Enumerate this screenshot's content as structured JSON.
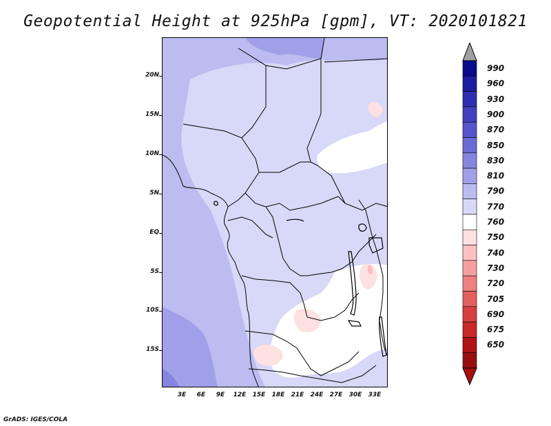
{
  "title": "Geopotential Height at 925hPa [gpm], VT: 2020101821",
  "footer": "GrADS: IGES/COLA",
  "map": {
    "lat_labels": [
      "20N",
      "15N",
      "10N",
      "5N",
      "EQ",
      "5S",
      "10S",
      "15S"
    ],
    "lon_labels": [
      "3E",
      "6E",
      "9E",
      "12E",
      "15E",
      "18E",
      "21E",
      "24E",
      "27E",
      "30E",
      "33E"
    ]
  },
  "colorbar": {
    "labels": [
      "990",
      "960",
      "930",
      "900",
      "870",
      "850",
      "830",
      "810",
      "790",
      "770",
      "760",
      "750",
      "740",
      "730",
      "720",
      "705",
      "690",
      "675",
      "650"
    ],
    "colors": [
      "#0a0a8c",
      "#1c1ca0",
      "#2e2eb2",
      "#4040c0",
      "#5555cc",
      "#6b6bd6",
      "#8585df",
      "#a0a0e8",
      "#bcbcf0",
      "#d8d8f8",
      "#ffffff",
      "#ffe1e1",
      "#fcc0c0",
      "#f5a0a0",
      "#ee8080",
      "#e45f5f",
      "#d84040",
      "#c82828",
      "#b01414",
      "#961010"
    ],
    "over_color": "#a0a0a0",
    "under_color": "#aa0f0f"
  }
}
